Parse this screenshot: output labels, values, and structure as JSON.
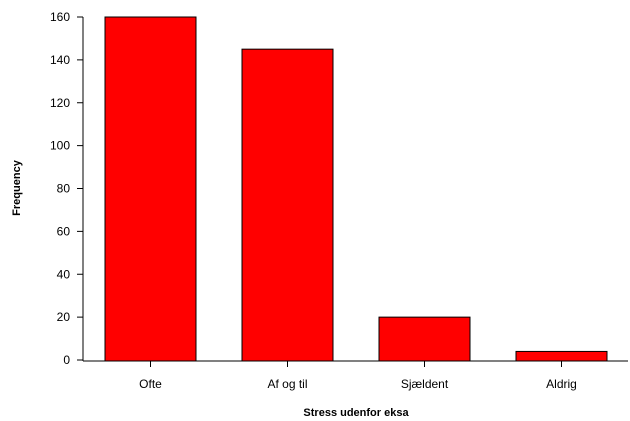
{
  "chart_data": {
    "type": "bar",
    "categories": [
      "Ofte",
      "Af og til",
      "Sjældent",
      "Aldrig"
    ],
    "values": [
      160,
      145,
      20,
      4
    ],
    "title": "",
    "xlabel": "Stress udenfor eksa",
    "ylabel": "Frequency",
    "ylim": [
      0,
      160
    ],
    "yticks": [
      0,
      20,
      40,
      60,
      80,
      100,
      120,
      140,
      160
    ],
    "grid": false,
    "legend": "none",
    "bar_color": "#ff0000",
    "bar_stroke": "#000000"
  }
}
